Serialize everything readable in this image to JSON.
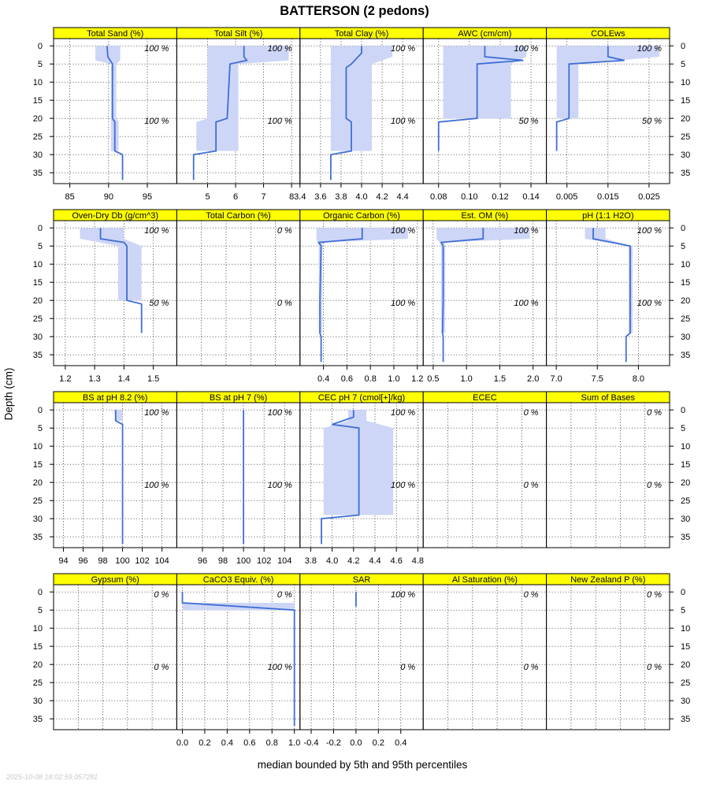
{
  "header": {
    "title": "BATTERSON (2 pedons)"
  },
  "axes": {
    "ylabel": "Depth (cm)",
    "xlabel": "median bounded by 5th and 95th percentiles"
  },
  "footer": {
    "timestamp": "2025-10-08 18:02:59.057281"
  },
  "colors": {
    "strip": "#ffff00",
    "band": "#cdd6f6",
    "line": "#3f6ed6"
  },
  "chart_data": {
    "type": "line",
    "depth_axis": {
      "ylim": [
        38,
        -2
      ],
      "ticks": [
        0,
        5,
        10,
        15,
        20,
        25,
        30,
        35
      ],
      "label": "Depth (cm)"
    },
    "panels": [
      {
        "name": "Total Sand (%)",
        "row": 0,
        "col": 0,
        "xlim": [
          82.9,
          98.8
        ],
        "ticks": [
          85,
          90,
          95
        ],
        "tick_labels": [
          "85",
          "90",
          "95"
        ],
        "median": [
          [
            89.8,
            0
          ],
          [
            89.9,
            3
          ],
          [
            90.5,
            5
          ],
          [
            90.5,
            20
          ],
          [
            90.8,
            21
          ],
          [
            90.8,
            29
          ],
          [
            91.8,
            30
          ],
          [
            91.8,
            37
          ]
        ],
        "band": [
          [
            88.3,
            91.5,
            0
          ],
          [
            88.3,
            91.5,
            4
          ],
          [
            90.3,
            91,
            5
          ],
          [
            90.3,
            91,
            20
          ],
          [
            90.3,
            91.3,
            21
          ],
          [
            90.3,
            91.3,
            29
          ]
        ],
        "pct": [
          "100 %",
          "100 %"
        ]
      },
      {
        "name": "Total Silt (%)",
        "row": 0,
        "col": 1,
        "xlim": [
          3.9,
          8.3
        ],
        "ticks": [
          5,
          6,
          7,
          8
        ],
        "tick_labels": [
          "5",
          "6",
          "7",
          "8"
        ],
        "median": [
          [
            6.3,
            0
          ],
          [
            6.3,
            3
          ],
          [
            6.4,
            4
          ],
          [
            5.8,
            5
          ],
          [
            5.7,
            20
          ],
          [
            5.3,
            21
          ],
          [
            5.3,
            29
          ],
          [
            4.5,
            30
          ],
          [
            4.5,
            37
          ]
        ],
        "band": [
          [
            5,
            7.9,
            0
          ],
          [
            5,
            7.9,
            4
          ],
          [
            5,
            6.1,
            5
          ],
          [
            5,
            6.1,
            20
          ],
          [
            4.6,
            6.1,
            21
          ],
          [
            4.6,
            6.1,
            29
          ]
        ],
        "pct": [
          "100 %",
          "100 %"
        ]
      },
      {
        "name": "Total Clay (%)",
        "row": 0,
        "col": 2,
        "xlim": [
          3.4,
          4.6
        ],
        "ticks": [
          3.4,
          3.6,
          3.8,
          4.0,
          4.2,
          4.4
        ],
        "tick_labels": [
          "3.4",
          "3.6",
          "3.8",
          "4.0",
          "4.2",
          "4.4"
        ],
        "median": [
          [
            4.0,
            0
          ],
          [
            4.0,
            2
          ],
          [
            3.9,
            5
          ],
          [
            3.85,
            6
          ],
          [
            3.85,
            20
          ],
          [
            3.9,
            21
          ],
          [
            3.9,
            29
          ],
          [
            3.7,
            30
          ],
          [
            3.7,
            37
          ]
        ],
        "band": [
          [
            3.7,
            4.3,
            0
          ],
          [
            3.7,
            4.3,
            3
          ],
          [
            3.7,
            4.1,
            5
          ],
          [
            3.7,
            4.1,
            20
          ],
          [
            3.7,
            4.1,
            29
          ]
        ],
        "pct": [
          "100 %",
          "100 %"
        ]
      },
      {
        "name": "AWC (cm/cm)",
        "row": 0,
        "col": 3,
        "xlim": [
          0.07,
          0.15
        ],
        "ticks": [
          0.08,
          0.1,
          0.12,
          0.14
        ],
        "tick_labels": [
          "0.08",
          "0.10",
          "0.12",
          "0.14"
        ],
        "median": [
          [
            0.11,
            0
          ],
          [
            0.11,
            3
          ],
          [
            0.135,
            4
          ],
          [
            0.105,
            5
          ],
          [
            0.105,
            20
          ],
          [
            0.08,
            21
          ],
          [
            0.08,
            29
          ]
        ],
        "band": [
          [
            0.083,
            0.137,
            0
          ],
          [
            0.083,
            0.137,
            3
          ],
          [
            0.083,
            0.127,
            5
          ],
          [
            0.083,
            0.127,
            20
          ]
        ],
        "pct": [
          "100 %",
          "50 %"
        ]
      },
      {
        "name": "COLEws",
        "row": 0,
        "col": 4,
        "xlim": [
          0.0,
          0.03
        ],
        "ticks": [
          0.005,
          0.015,
          0.025
        ],
        "tick_labels": [
          "0.005",
          "0.015",
          "0.025"
        ],
        "median": [
          [
            0.015,
            0
          ],
          [
            0.015,
            3
          ],
          [
            0.019,
            4
          ],
          [
            0.0055,
            5
          ],
          [
            0.0055,
            20
          ],
          [
            0.0025,
            21
          ],
          [
            0.0025,
            29
          ]
        ],
        "band": [
          [
            0.0025,
            0.0275,
            0
          ],
          [
            0.0025,
            0.0275,
            3
          ],
          [
            0.0025,
            0.0078,
            5
          ],
          [
            0.0025,
            0.0078,
            20
          ]
        ],
        "pct": [
          "100 %",
          "50 %"
        ]
      },
      {
        "name": "Oven-Dry Db (g/cm^3)",
        "row": 1,
        "col": 0,
        "xlim": [
          1.16,
          1.58
        ],
        "ticks": [
          1.2,
          1.3,
          1.4,
          1.5
        ],
        "tick_labels": [
          "1.2",
          "1.3",
          "1.4",
          "1.5"
        ],
        "median": [
          [
            1.32,
            0
          ],
          [
            1.32,
            3
          ],
          [
            1.4,
            4
          ],
          [
            1.41,
            5
          ],
          [
            1.41,
            20
          ],
          [
            1.46,
            21
          ],
          [
            1.46,
            29
          ]
        ],
        "band": [
          [
            1.25,
            1.4,
            0
          ],
          [
            1.25,
            1.4,
            3
          ],
          [
            1.38,
            1.46,
            5
          ],
          [
            1.38,
            1.46,
            20
          ]
        ],
        "pct": [
          "100 %",
          "50 %"
        ]
      },
      {
        "name": "Total Carbon (%)",
        "row": 1,
        "col": 1,
        "xlim": [
          0,
          1
        ],
        "ticks": [],
        "tick_labels": [],
        "median": [],
        "band": [],
        "pct": [
          "0 %",
          "0 %"
        ]
      },
      {
        "name": "Organic Carbon (%)",
        "row": 1,
        "col": 2,
        "xlim": [
          0.2,
          1.25
        ],
        "ticks": [
          0.4,
          0.6,
          0.8,
          1.0,
          1.2
        ],
        "tick_labels": [
          "0.4",
          "0.6",
          "0.8",
          "1.0",
          "1.2"
        ],
        "median": [
          [
            0.73,
            0
          ],
          [
            0.73,
            3
          ],
          [
            0.36,
            4
          ],
          [
            0.38,
            5
          ],
          [
            0.37,
            20
          ],
          [
            0.37,
            29
          ],
          [
            0.38,
            30
          ],
          [
            0.38,
            37
          ]
        ],
        "band": [
          [
            0.34,
            1.12,
            0
          ],
          [
            0.34,
            1.12,
            3
          ],
          [
            0.35,
            0.39,
            4
          ],
          [
            0.36,
            0.39,
            5
          ],
          [
            0.36,
            0.39,
            29
          ]
        ],
        "pct": [
          "100 %",
          "100 %"
        ]
      },
      {
        "name": "Est. OM (%)",
        "row": 1,
        "col": 3,
        "xlim": [
          0.35,
          2.2
        ],
        "ticks": [
          0.5,
          1.0,
          1.5,
          2.0
        ],
        "tick_labels": [
          "0.5",
          "1.0",
          "1.5",
          "2.0"
        ],
        "median": [
          [
            1.25,
            0
          ],
          [
            1.25,
            3
          ],
          [
            0.62,
            4
          ],
          [
            0.65,
            5
          ],
          [
            0.65,
            20
          ],
          [
            0.64,
            29
          ],
          [
            0.65,
            30
          ],
          [
            0.65,
            37
          ]
        ],
        "band": [
          [
            0.55,
            1.95,
            0
          ],
          [
            0.55,
            1.95,
            3
          ],
          [
            0.6,
            0.67,
            4
          ],
          [
            0.62,
            0.68,
            5
          ],
          [
            0.62,
            0.68,
            29
          ]
        ],
        "pct": [
          "100 %",
          "100 %"
        ]
      },
      {
        "name": "pH (1:1 H2O)",
        "row": 1,
        "col": 4,
        "xlim": [
          6.88,
          8.38
        ],
        "ticks": [
          7.0,
          7.5,
          8.0
        ],
        "tick_labels": [
          "7.0",
          "7.5",
          "8.0"
        ],
        "median": [
          [
            7.45,
            0
          ],
          [
            7.45,
            3
          ],
          [
            7.9,
            5
          ],
          [
            7.9,
            20
          ],
          [
            7.9,
            29
          ],
          [
            7.85,
            30
          ],
          [
            7.85,
            37
          ]
        ],
        "band": [
          [
            7.35,
            7.6,
            0
          ],
          [
            7.35,
            7.6,
            3
          ],
          [
            7.88,
            7.93,
            5
          ],
          [
            7.88,
            7.93,
            29
          ]
        ],
        "pct": [
          "100 %",
          "100 %"
        ]
      },
      {
        "name": "BS at pH 8.2 (%)",
        "row": 2,
        "col": 0,
        "xlim": [
          93,
          105.5
        ],
        "ticks": [
          94,
          96,
          98,
          100,
          102,
          104
        ],
        "tick_labels": [
          "94",
          "96",
          "98",
          "100",
          "102",
          "104"
        ],
        "median": [
          [
            99.3,
            0
          ],
          [
            99.3,
            3
          ],
          [
            100,
            4
          ],
          [
            100,
            37
          ]
        ],
        "band": [
          [
            99.2,
            100,
            0
          ],
          [
            99.2,
            100,
            3
          ]
        ],
        "pct": [
          "100 %",
          "100 %"
        ]
      },
      {
        "name": "BS at pH 7 (%)",
        "row": 2,
        "col": 1,
        "xlim": [
          93.5,
          105.5
        ],
        "ticks": [
          96,
          98,
          100,
          102,
          104
        ],
        "tick_labels": [
          "96",
          "98",
          "100",
          "102",
          "104"
        ],
        "median": [
          [
            100,
            0
          ],
          [
            100,
            37
          ]
        ],
        "band": [],
        "pct": [
          "100 %",
          "100 %"
        ]
      },
      {
        "name": "CEC pH 7 (cmol[+]/kg)",
        "row": 2,
        "col": 2,
        "xlim": [
          3.7,
          4.85
        ],
        "ticks": [
          3.8,
          4.0,
          4.2,
          4.4,
          4.6,
          4.8
        ],
        "tick_labels": [
          "3.8",
          "4.0",
          "4.2",
          "4.4",
          "4.6",
          "4.8"
        ],
        "median": [
          [
            4.2,
            0
          ],
          [
            4.2,
            2
          ],
          [
            4.0,
            4
          ],
          [
            4.25,
            5
          ],
          [
            4.25,
            29
          ],
          [
            3.9,
            30
          ],
          [
            3.9,
            37
          ]
        ],
        "band": [
          [
            4.15,
            4.32,
            0
          ],
          [
            4.15,
            4.32,
            3
          ],
          [
            3.92,
            4.57,
            5
          ],
          [
            3.92,
            4.57,
            29
          ]
        ],
        "pct": [
          "100 %",
          "100 %"
        ]
      },
      {
        "name": "ECEC",
        "row": 2,
        "col": 3,
        "xlim": [
          0,
          1
        ],
        "ticks": [],
        "tick_labels": [],
        "median": [],
        "band": [],
        "pct": [
          "0 %",
          "0 %"
        ]
      },
      {
        "name": "Sum of Bases",
        "row": 2,
        "col": 4,
        "xlim": [
          0,
          1
        ],
        "ticks": [],
        "tick_labels": [],
        "median": [],
        "band": [],
        "pct": [
          "0 %",
          "0 %"
        ]
      },
      {
        "name": "Gypsum (%)",
        "row": 3,
        "col": 0,
        "xlim": [
          0,
          1
        ],
        "ticks": [],
        "tick_labels": [],
        "median": [],
        "band": [],
        "pct": [
          "0 %",
          "0 %"
        ]
      },
      {
        "name": "CaCO3 Equiv. (%)",
        "row": 3,
        "col": 1,
        "xlim": [
          -0.05,
          1.05
        ],
        "ticks": [
          0,
          0.2,
          0.4,
          0.6,
          0.8,
          1.0
        ],
        "tick_labels": [
          "0.0",
          "0.2",
          "0.4",
          "0.6",
          "0.8",
          "1.0"
        ],
        "median": [
          [
            0,
            0
          ],
          [
            0,
            3
          ],
          [
            1,
            5
          ],
          [
            1,
            37
          ]
        ],
        "band": [
          [
            0,
            1,
            3
          ],
          [
            0,
            1,
            5
          ]
        ],
        "pct": [
          "0 %",
          "100 %"
        ]
      },
      {
        "name": "SAR",
        "row": 3,
        "col": 2,
        "xlim": [
          -0.5,
          0.6
        ],
        "ticks": [
          -0.4,
          -0.2,
          0,
          0.2,
          0.4
        ],
        "tick_labels": [
          "-0.4",
          "-0.2",
          "0.0",
          "0.2",
          "0.4"
        ],
        "median": [
          [
            0,
            0
          ],
          [
            0,
            4
          ]
        ],
        "band": [],
        "pct": [
          "100 %",
          "0 %"
        ]
      },
      {
        "name": "Al Saturation (%)",
        "row": 3,
        "col": 3,
        "xlim": [
          0,
          1
        ],
        "ticks": [],
        "tick_labels": [],
        "median": [],
        "band": [],
        "pct": [
          "0 %",
          "0 %"
        ]
      },
      {
        "name": "New Zealand P (%)",
        "row": 3,
        "col": 4,
        "xlim": [
          0,
          1
        ],
        "ticks": [],
        "tick_labels": [],
        "median": [],
        "band": [],
        "pct": [
          "0 %",
          "0 %"
        ]
      }
    ]
  }
}
